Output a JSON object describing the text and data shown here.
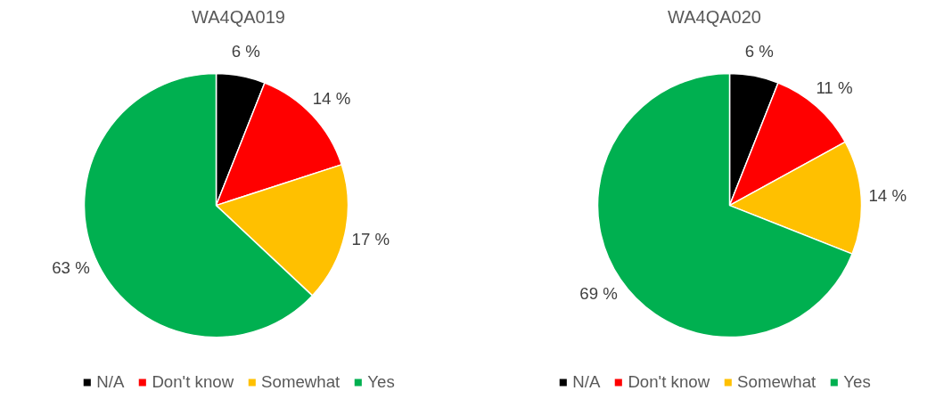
{
  "chart_data": [
    {
      "type": "pie",
      "title": "WA4QA019",
      "categories": [
        "N/A",
        "Don't know",
        "Somewhat",
        "Yes"
      ],
      "values": [
        6,
        14,
        17,
        63
      ],
      "colors": [
        "#000000",
        "#ff0000",
        "#ffc000",
        "#00b050"
      ],
      "value_labels": [
        "6 %",
        "14 %",
        "17 %",
        "63 %"
      ],
      "legend": "bottom"
    },
    {
      "type": "pie",
      "title": "WA4QA020",
      "categories": [
        "N/A",
        "Don't know",
        "Somewhat",
        "Yes"
      ],
      "values": [
        6,
        11,
        14,
        69
      ],
      "colors": [
        "#000000",
        "#ff0000",
        "#ffc000",
        "#00b050"
      ],
      "value_labels": [
        "6 %",
        "11 %",
        "14 %",
        "69 %"
      ],
      "legend": "bottom"
    }
  ]
}
